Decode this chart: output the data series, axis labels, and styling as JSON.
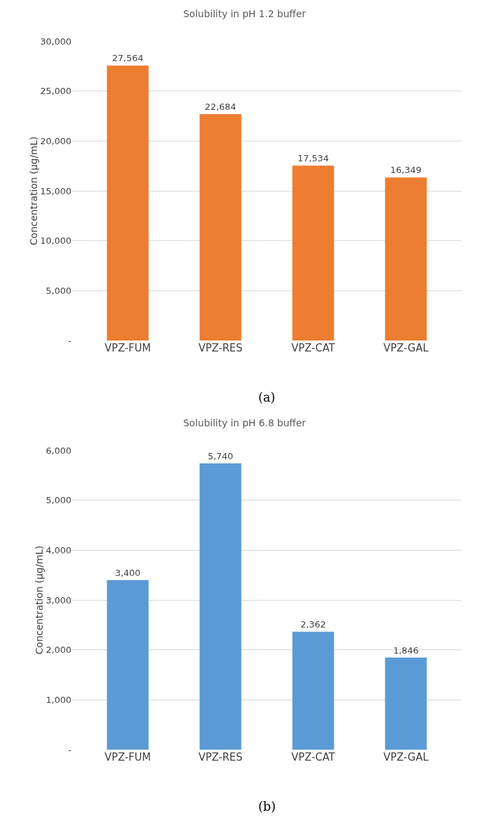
{
  "chart_data": [
    {
      "type": "bar",
      "title": "Solubility in pH 1.2 buffer",
      "ylabel": "Concentration (µg/mL)",
      "categories": [
        "VPZ-FUM",
        "VPZ-RES",
        "VPZ-CAT",
        "VPZ-GAL"
      ],
      "values": [
        27564,
        22684,
        17534,
        16349
      ],
      "value_labels": [
        "27,564",
        "22,684",
        "17,534",
        "16,349"
      ],
      "color": "#ed7d31",
      "ylim": [
        0,
        30000
      ],
      "yticks": [
        {
          "value": 0,
          "label": "-"
        },
        {
          "value": 5000,
          "label": "5,000"
        },
        {
          "value": 10000,
          "label": "10,000"
        },
        {
          "value": 15000,
          "label": "15,000"
        },
        {
          "value": 20000,
          "label": "20,000"
        },
        {
          "value": 25000,
          "label": "25,000"
        },
        {
          "value": 30000,
          "label": "30,000"
        }
      ],
      "grid": "y",
      "annotations": [
        "(a)"
      ]
    },
    {
      "type": "bar",
      "title": "Solubility in pH 6.8 buffer",
      "ylabel": "Concentration (µg/mL)",
      "categories": [
        "VPZ-FUM",
        "VPZ-RES",
        "VPZ-CAT",
        "VPZ-GAL"
      ],
      "values": [
        3400,
        5740,
        2362,
        1846
      ],
      "value_labels": [
        "3,400",
        "5,740",
        "2,362",
        "1,846"
      ],
      "color": "#5b9bd5",
      "ylim": [
        0,
        6000
      ],
      "yticks": [
        {
          "value": 0,
          "label": "-"
        },
        {
          "value": 1000,
          "label": "1,000"
        },
        {
          "value": 2000,
          "label": "2,000"
        },
        {
          "value": 3000,
          "label": "3,000"
        },
        {
          "value": 4000,
          "label": "4,000"
        },
        {
          "value": 5000,
          "label": "5,000"
        },
        {
          "value": 6000,
          "label": "6,000"
        }
      ],
      "grid": "y",
      "annotations": [
        "(b)"
      ]
    }
  ]
}
